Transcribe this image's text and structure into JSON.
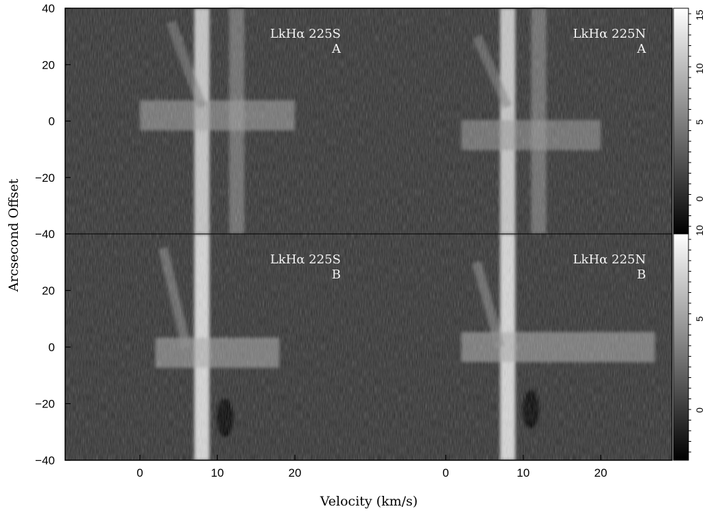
{
  "chart_data": {
    "type": "heatmap",
    "xlabel": "Velocity (km/s)",
    "ylabel": "Arcsecond Offset",
    "ylim": [
      -40,
      40
    ],
    "yticks": [
      40,
      20,
      0,
      -20,
      -40
    ],
    "ytick_labels": [
      "40",
      "20",
      "0",
      "−20",
      "−40"
    ],
    "xticks": [
      0,
      10,
      20
    ],
    "xlim": [
      -9,
      30
    ],
    "colormap": "grayscale (black low, white high)",
    "panels": [
      {
        "row": "A",
        "colorbar": {
          "ticks": [
            15,
            10,
            5,
            0
          ],
          "ticklabels_shown": [
            "15",
            "10",
            "5",
            "0",
            "10"
          ]
        },
        "spectra": [
          {
            "label_line1": "LkHα 225S",
            "label_line2": "A",
            "features": [
              {
                "kind": "vertical",
                "velocity": 8,
                "intensity": 0.85
              },
              {
                "kind": "vertical",
                "velocity": 12.5,
                "intensity": 0.35
              },
              {
                "kind": "horizontal",
                "offset": 2,
                "vel_range": [
                  0,
                  20
                ],
                "intensity": 0.55
              },
              {
                "kind": "diagonal",
                "from": [
                  4,
                  35
                ],
                "to": [
                  8,
                  5
                ],
                "intensity": 0.4
              }
            ]
          },
          {
            "label_line1": "LkHα 225N",
            "label_line2": "A",
            "features": [
              {
                "kind": "vertical",
                "velocity": 8,
                "intensity": 0.85
              },
              {
                "kind": "vertical",
                "velocity": 12,
                "intensity": 0.35
              },
              {
                "kind": "horizontal",
                "offset": -5,
                "vel_range": [
                  2,
                  20
                ],
                "intensity": 0.5
              },
              {
                "kind": "diagonal",
                "from": [
                  4,
                  30
                ],
                "to": [
                  8,
                  5
                ],
                "intensity": 0.4
              }
            ]
          }
        ]
      },
      {
        "row": "B",
        "colorbar": {
          "ticks": [
            10,
            5,
            0
          ],
          "ticklabels_shown": [
            "5",
            "0"
          ]
        },
        "spectra": [
          {
            "label_line1": "LkHα 225S",
            "label_line2": "B",
            "features": [
              {
                "kind": "vertical",
                "velocity": 8,
                "intensity": 0.95
              },
              {
                "kind": "horizontal",
                "offset": -2,
                "vel_range": [
                  2,
                  18
                ],
                "intensity": 0.6
              },
              {
                "kind": "diagonal",
                "from": [
                  3,
                  35
                ],
                "to": [
                  6,
                  0
                ],
                "intensity": 0.45
              },
              {
                "kind": "dark",
                "velocity": 11,
                "offset": -25,
                "intensity": 0.0
              }
            ]
          },
          {
            "label_line1": "LkHα 225N",
            "label_line2": "B",
            "features": [
              {
                "kind": "vertical",
                "velocity": 8,
                "intensity": 0.95
              },
              {
                "kind": "horizontal",
                "offset": 0,
                "vel_range": [
                  2,
                  27
                ],
                "intensity": 0.6
              },
              {
                "kind": "diagonal",
                "from": [
                  4,
                  30
                ],
                "to": [
                  7,
                  0
                ],
                "intensity": 0.45
              },
              {
                "kind": "dark",
                "velocity": 11,
                "offset": -22,
                "intensity": 0.0
              }
            ]
          }
        ]
      }
    ]
  }
}
